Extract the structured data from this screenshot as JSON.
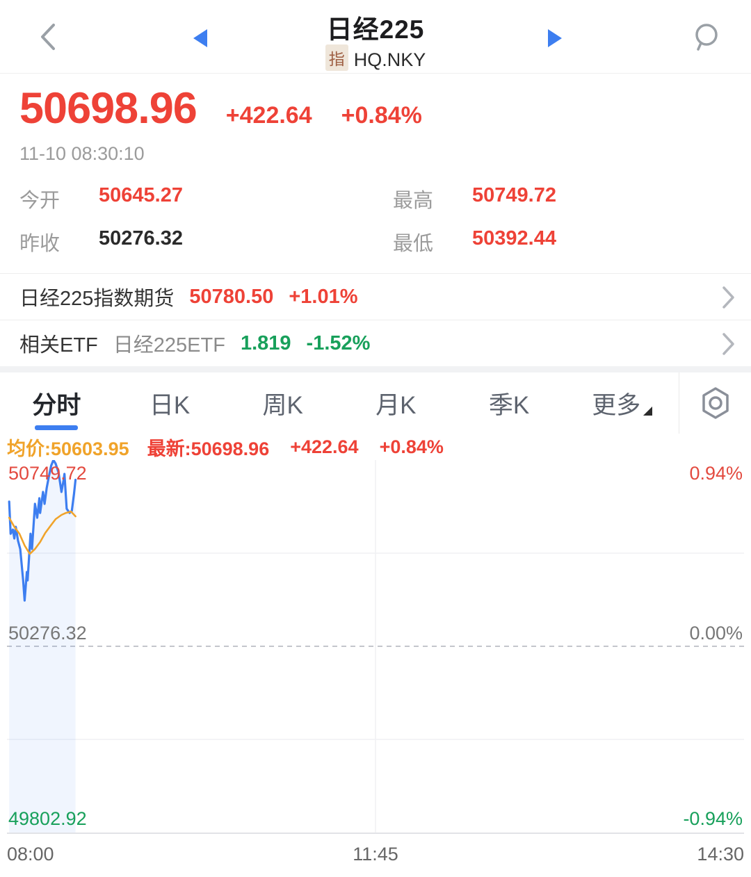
{
  "header": {
    "title": "日经225",
    "type_badge": "指",
    "code": "HQ.NKY"
  },
  "quote": {
    "price": "50698.96",
    "change": "+422.64",
    "change_pct": "+0.84%",
    "timestamp": "11-10 08:30:10",
    "stats": [
      {
        "label": "今开",
        "value": "50645.27",
        "tone": "up"
      },
      {
        "label": "最高",
        "value": "50749.72",
        "tone": "up"
      },
      {
        "label": "昨收",
        "value": "50276.32",
        "tone": "neutral"
      },
      {
        "label": "最低",
        "value": "50392.44",
        "tone": "up"
      }
    ]
  },
  "futures_row": {
    "label": "日经225指数期货",
    "price": "50780.50",
    "change_pct": "+1.01%"
  },
  "etf_row": {
    "label": "相关ETF",
    "name": "日经225ETF",
    "price": "1.819",
    "change_pct": "-1.52%"
  },
  "tabs": [
    {
      "label": "分时",
      "active": true
    },
    {
      "label": "日K",
      "active": false
    },
    {
      "label": "周K",
      "active": false
    },
    {
      "label": "月K",
      "active": false
    },
    {
      "label": "季K",
      "active": false
    },
    {
      "label": "更多",
      "active": false,
      "has_dropdown": true
    }
  ],
  "legend": {
    "avg": "均价:50603.95",
    "latest": "最新:50698.96",
    "change": "+422.64",
    "change_pct": "+0.84%"
  },
  "icons": {
    "back": "chevron-left",
    "prev_stock": "blue-left-triangle",
    "next_stock": "blue-right-triangle",
    "search": "magnifier",
    "row_arrow": "chevron-right",
    "settings": "hexagon-nut",
    "more_dropdown": "corner-triangle"
  },
  "colors": {
    "up_red": "#ee4237",
    "down_green": "#18a05b",
    "avg_orange": "#f0a32a",
    "price_line_blue": "#3d7ef0",
    "accent_blue": "#3d7ef0"
  },
  "chart_data": {
    "type": "line",
    "title": "分时 (intraday) 日经225",
    "x_axis": {
      "labels": [
        "08:00",
        "11:45",
        "14:30"
      ],
      "session_minutes": 390
    },
    "y_axis": {
      "left_labels": [
        "50749.72",
        "50276.32",
        "49802.92"
      ],
      "right_labels": [
        "0.94%",
        "0.00%",
        "-0.94%"
      ],
      "max_pct": 0.94,
      "min_pct": -0.94,
      "prev_close": 50276.32
    },
    "key_values": {
      "open": 50645.27,
      "high": 50749.72,
      "low": 50392.44,
      "prev_close": 50276.32,
      "latest": 50698.96,
      "change": 422.64,
      "change_pct": 0.84,
      "avg_price": 50603.95
    },
    "grid": {
      "h_lines_pct": [
        0.47,
        -0.47
      ],
      "v_line_t": 0.5,
      "zero_dashed": true
    },
    "series": [
      {
        "name": "price",
        "color": "#3d7ef0",
        "width": 3.2,
        "fill": "rgba(61,126,240,0.08)",
        "points": [
          [
            0.003,
            0.73
          ],
          [
            0.005,
            0.568
          ],
          [
            0.008,
            0.589
          ],
          [
            0.01,
            0.544
          ],
          [
            0.012,
            0.603
          ],
          [
            0.015,
            0.533
          ],
          [
            0.018,
            0.491
          ],
          [
            0.022,
            0.333
          ],
          [
            0.024,
            0.231
          ],
          [
            0.027,
            0.375
          ],
          [
            0.028,
            0.333
          ],
          [
            0.032,
            0.568
          ],
          [
            0.034,
            0.491
          ],
          [
            0.038,
            0.719
          ],
          [
            0.041,
            0.649
          ],
          [
            0.044,
            0.747
          ],
          [
            0.045,
            0.673
          ],
          [
            0.049,
            0.779
          ],
          [
            0.051,
            0.719
          ],
          [
            0.054,
            0.8
          ],
          [
            0.057,
            0.859
          ],
          [
            0.06,
            0.912
          ],
          [
            0.063,
            0.94
          ],
          [
            0.066,
            0.922
          ],
          [
            0.07,
            0.877
          ],
          [
            0.074,
            0.779
          ],
          [
            0.077,
            0.842
          ],
          [
            0.078,
            0.87
          ],
          [
            0.081,
            0.694
          ],
          [
            0.085,
            0.673
          ],
          [
            0.088,
            0.684
          ],
          [
            0.091,
            0.772
          ],
          [
            0.093,
            0.84
          ]
        ]
      },
      {
        "name": "avg",
        "color": "#f0a32a",
        "width": 2.6,
        "fill": null,
        "points": [
          [
            0.003,
            0.649
          ],
          [
            0.01,
            0.603
          ],
          [
            0.017,
            0.568
          ],
          [
            0.024,
            0.509
          ],
          [
            0.031,
            0.466
          ],
          [
            0.038,
            0.491
          ],
          [
            0.045,
            0.526
          ],
          [
            0.052,
            0.572
          ],
          [
            0.059,
            0.607
          ],
          [
            0.066,
            0.642
          ],
          [
            0.074,
            0.663
          ],
          [
            0.08,
            0.673
          ],
          [
            0.087,
            0.68
          ],
          [
            0.093,
            0.656
          ]
        ]
      }
    ]
  }
}
